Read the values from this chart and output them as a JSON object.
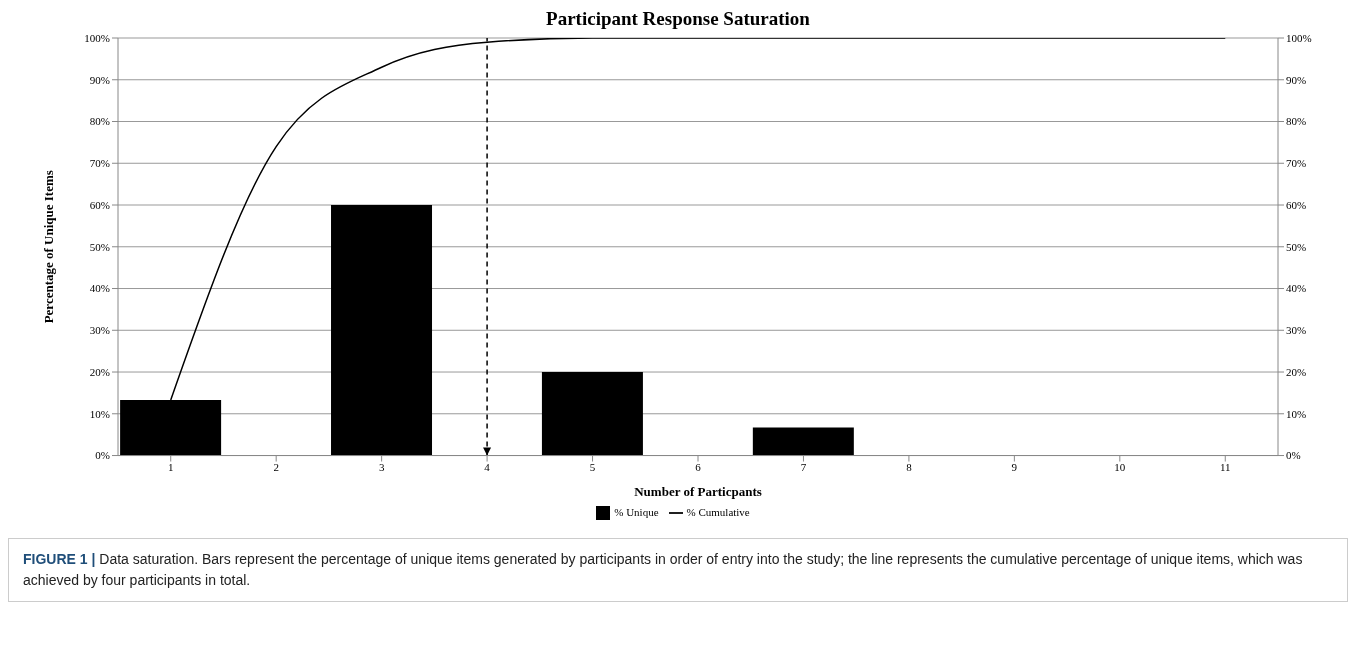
{
  "chart_data": {
    "type": "bar",
    "title": "Participant Response Saturation",
    "xlabel": "Number of Particpants",
    "ylabel": "Percentage of Unique Items",
    "categories": [
      "1",
      "2",
      "3",
      "4",
      "5",
      "6",
      "7",
      "8",
      "9",
      "10",
      "11"
    ],
    "series": [
      {
        "name": "% Unique",
        "color": "#000000",
        "values": [
          13.3,
          0,
          60,
          0,
          20,
          0,
          6.7,
          0,
          0,
          0,
          0
        ]
      },
      {
        "name": "% Cumulative",
        "type": "line",
        "color": "#000000",
        "values": [
          13.3,
          74,
          93,
          99,
          100,
          100,
          100,
          100,
          100,
          100,
          100
        ]
      }
    ],
    "ylim": [
      0,
      100
    ],
    "yticks": [
      {
        "value": 0,
        "label": "0%"
      },
      {
        "value": 10,
        "label": "10%"
      },
      {
        "value": 20,
        "label": "20%"
      },
      {
        "value": 30,
        "label": "30%"
      },
      {
        "value": 40,
        "label": "40%"
      },
      {
        "value": 50,
        "label": "50%"
      },
      {
        "value": 60,
        "label": "60%"
      },
      {
        "value": 70,
        "label": "70%"
      },
      {
        "value": 80,
        "label": "80%"
      },
      {
        "value": 90,
        "label": "90%"
      },
      {
        "value": 100,
        "label": "100%"
      }
    ],
    "y2lim": [
      0,
      100
    ],
    "y2ticks": [
      {
        "value": 0,
        "label": "0%"
      },
      {
        "value": 10,
        "label": "10%"
      },
      {
        "value": 20,
        "label": "20%"
      },
      {
        "value": 30,
        "label": "30%"
      },
      {
        "value": 40,
        "label": "40%"
      },
      {
        "value": 50,
        "label": "50%"
      },
      {
        "value": 60,
        "label": "60%"
      },
      {
        "value": 70,
        "label": "70%"
      },
      {
        "value": 80,
        "label": "80%"
      },
      {
        "value": 90,
        "label": "90%"
      },
      {
        "value": 100,
        "label": "100%"
      }
    ],
    "ref_lines": [
      {
        "axis": "x",
        "value": "4",
        "color": "#000000",
        "line_style": "dashed"
      }
    ],
    "grid": "y",
    "legend": "bottom",
    "marker": "none",
    "line_style": "solid",
    "annotations": [
      "FIGURE 1 | Data saturation. Bars represent the percentage of unique items generated by participants in order of entry into the study; the line represents the cumulative percentage of unique items, which was achieved by four participants in total."
    ]
  }
}
